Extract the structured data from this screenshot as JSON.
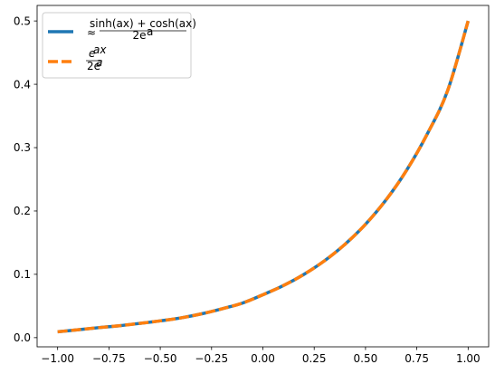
{
  "chart_data": {
    "type": "line",
    "title": "",
    "xlabel": "",
    "ylabel": "",
    "xlim": [
      -1.1,
      1.1
    ],
    "ylim": [
      -0.0145,
      0.5245
    ],
    "x_ticks": [
      -1.0,
      -0.75,
      -0.5,
      -0.25,
      0.0,
      0.25,
      0.5,
      0.75,
      1.0
    ],
    "x_tick_labels": [
      "−1.00",
      "−0.75",
      "−0.50",
      "−0.25",
      "0.00",
      "0.25",
      "0.50",
      "0.75",
      "1.00"
    ],
    "y_ticks": [
      0.0,
      0.1,
      0.2,
      0.3,
      0.4,
      0.5
    ],
    "y_tick_labels": [
      "0.0",
      "0.1",
      "0.2",
      "0.3",
      "0.4",
      "0.5"
    ],
    "grid": false,
    "legend_position": "top-left",
    "x": [
      -1.0,
      -0.9,
      -0.8,
      -0.7,
      -0.6,
      -0.5,
      -0.4,
      -0.3,
      -0.2,
      -0.1,
      0.0,
      0.1,
      0.2,
      0.3,
      0.4,
      0.5,
      0.6,
      0.7,
      0.8,
      0.9,
      1.0
    ],
    "series": [
      {
        "name": "≈ (sinh(ax) + cosh(ax)) / 2e^a",
        "color": "#1f77b4",
        "style": "solid",
        "values": [
          0.0092,
          0.0125,
          0.0158,
          0.0188,
          0.0225,
          0.0265,
          0.0312,
          0.0375,
          0.0455,
          0.0545,
          0.0677,
          0.0822,
          0.0999,
          0.1213,
          0.1474,
          0.179,
          0.2175,
          0.2642,
          0.321,
          0.39,
          0.5
        ]
      },
      {
        "name": "e^ax / 2e^a",
        "color": "#ff7f0e",
        "style": "dashed",
        "values": [
          0.0092,
          0.0125,
          0.0158,
          0.0188,
          0.0225,
          0.0265,
          0.0312,
          0.0375,
          0.0455,
          0.0545,
          0.0677,
          0.0822,
          0.0999,
          0.1213,
          0.1474,
          0.179,
          0.2175,
          0.2642,
          0.321,
          0.39,
          0.5
        ]
      }
    ]
  },
  "legend": {
    "approx_symbol": "≈",
    "s1_num": "sinh(ax) + cosh(ax)",
    "s1_den": "2e",
    "s1_den_sup": "a",
    "s2_num": "e",
    "s2_num_sup": "ax",
    "s2_den": "2e",
    "s2_den_sup": "a"
  }
}
